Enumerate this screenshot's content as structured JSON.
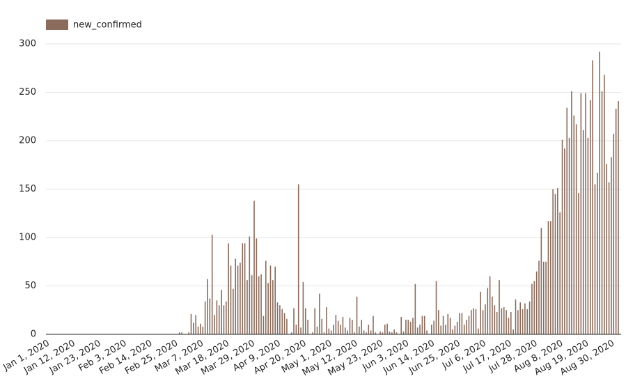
{
  "chart_data": {
    "type": "bar",
    "series": [
      {
        "name": "new_confirmed",
        "color": "#8a6b5c",
        "values": [
          0,
          0,
          0,
          0,
          0,
          0,
          0,
          0,
          0,
          0,
          0,
          0,
          0,
          0,
          0,
          0,
          0,
          0,
          0,
          0,
          0,
          0,
          0,
          0,
          0,
          0,
          0,
          0,
          0,
          0,
          0,
          0,
          0,
          0,
          0,
          0,
          0,
          0,
          0,
          0,
          0,
          0,
          0,
          0,
          0,
          0,
          0,
          0,
          0,
          0,
          0,
          0,
          0,
          0,
          0,
          0,
          2,
          2,
          0,
          0,
          2,
          21,
          12,
          20,
          8,
          11,
          8,
          34,
          57,
          37,
          103,
          20,
          35,
          30,
          46,
          30,
          34,
          94,
          71,
          47,
          78,
          71,
          74,
          94,
          94,
          56,
          101,
          61,
          138,
          99,
          60,
          62,
          19,
          76,
          53,
          71,
          56,
          70,
          33,
          30,
          26,
          22,
          16,
          0,
          2,
          27,
          10,
          155,
          7,
          54,
          27,
          15,
          0,
          2,
          27,
          8,
          42,
          16,
          2,
          28,
          6,
          4,
          10,
          20,
          14,
          10,
          18,
          7,
          4,
          17,
          15,
          2,
          39,
          8,
          15,
          4,
          2,
          10,
          4,
          19,
          2,
          0,
          3,
          2,
          10,
          11,
          3,
          2,
          5,
          2,
          0,
          18,
          3,
          15,
          15,
          13,
          17,
          52,
          7,
          10,
          19,
          19,
          4,
          0,
          10,
          14,
          55,
          25,
          9,
          19,
          10,
          21,
          17,
          5,
          9,
          13,
          22,
          22,
          10,
          15,
          19,
          25,
          27,
          26,
          6,
          44,
          25,
          31,
          48,
          60,
          39,
          30,
          23,
          56,
          27,
          28,
          25,
          17,
          23,
          5,
          36,
          25,
          33,
          26,
          32,
          26,
          34,
          52,
          55,
          65,
          76,
          110,
          75,
          75,
          117,
          117,
          150,
          145,
          151,
          126,
          201,
          192,
          234,
          203,
          251,
          226,
          217,
          146,
          249,
          211,
          249,
          203,
          242,
          283,
          155,
          167,
          292,
          251,
          268,
          176,
          157,
          183,
          207,
          233,
          241
        ]
      }
    ],
    "categories": [
      "Jan 1, 2020",
      null,
      null,
      null,
      null,
      null,
      null,
      null,
      null,
      null,
      null,
      "Jan 12, 2020",
      null,
      null,
      null,
      null,
      null,
      null,
      null,
      null,
      null,
      null,
      "Jan 23, 2020",
      null,
      null,
      null,
      null,
      null,
      null,
      null,
      null,
      null,
      null,
      "Feb 3, 2020",
      null,
      null,
      null,
      null,
      null,
      null,
      null,
      null,
      null,
      null,
      "Feb 14, 2020",
      null,
      null,
      null,
      null,
      null,
      null,
      null,
      null,
      null,
      null,
      "Feb 25, 2020",
      null,
      null,
      null,
      null,
      null,
      null,
      null,
      null,
      null,
      null,
      "Mar 7, 2020",
      null,
      null,
      null,
      null,
      null,
      null,
      null,
      null,
      null,
      null,
      "Mar 18, 2020",
      null,
      null,
      null,
      null,
      null,
      null,
      null,
      null,
      null,
      null,
      "Mar 29, 2020",
      null,
      null,
      null,
      null,
      null,
      null,
      null,
      null,
      null,
      null,
      "Apr 9, 2020",
      null,
      null,
      null,
      null,
      null,
      null,
      null,
      null,
      null,
      null,
      "Apr 20, 2020",
      null,
      null,
      null,
      null,
      null,
      null,
      null,
      null,
      null,
      null,
      "May 1, 2020",
      null,
      null,
      null,
      null,
      null,
      null,
      null,
      null,
      null,
      null,
      "May 12, 2020",
      null,
      null,
      null,
      null,
      null,
      null,
      null,
      null,
      null,
      null,
      "May 23, 2020",
      null,
      null,
      null,
      null,
      null,
      null,
      null,
      null,
      null,
      null,
      "Jun 3, 2020",
      null,
      null,
      null,
      null,
      null,
      null,
      null,
      null,
      null,
      null,
      "Jun 14, 2020",
      null,
      null,
      null,
      null,
      null,
      null,
      null,
      null,
      null,
      null,
      "Jun 25, 2020",
      null,
      null,
      null,
      null,
      null,
      null,
      null,
      null,
      null,
      null,
      "Jul 6, 2020",
      null,
      null,
      null,
      null,
      null,
      null,
      null,
      null,
      null,
      null,
      "Jul 17, 2020",
      null,
      null,
      null,
      null,
      null,
      null,
      null,
      null,
      null,
      null,
      "Jul 28, 2020",
      null,
      null,
      null,
      null,
      null,
      null,
      null,
      null,
      null,
      null,
      "Aug 8, 2020",
      null,
      null,
      null,
      null,
      null,
      null,
      null,
      null,
      null,
      null,
      "Aug 19, 2020",
      null,
      null,
      null,
      null,
      null,
      null,
      null,
      null,
      null,
      null,
      "Aug 30, 2020",
      null,
      null
    ],
    "ylim": [
      0,
      300
    ],
    "yticks": [
      0,
      50,
      100,
      150,
      200,
      250,
      300
    ],
    "grid": true,
    "legend": "top-left"
  }
}
